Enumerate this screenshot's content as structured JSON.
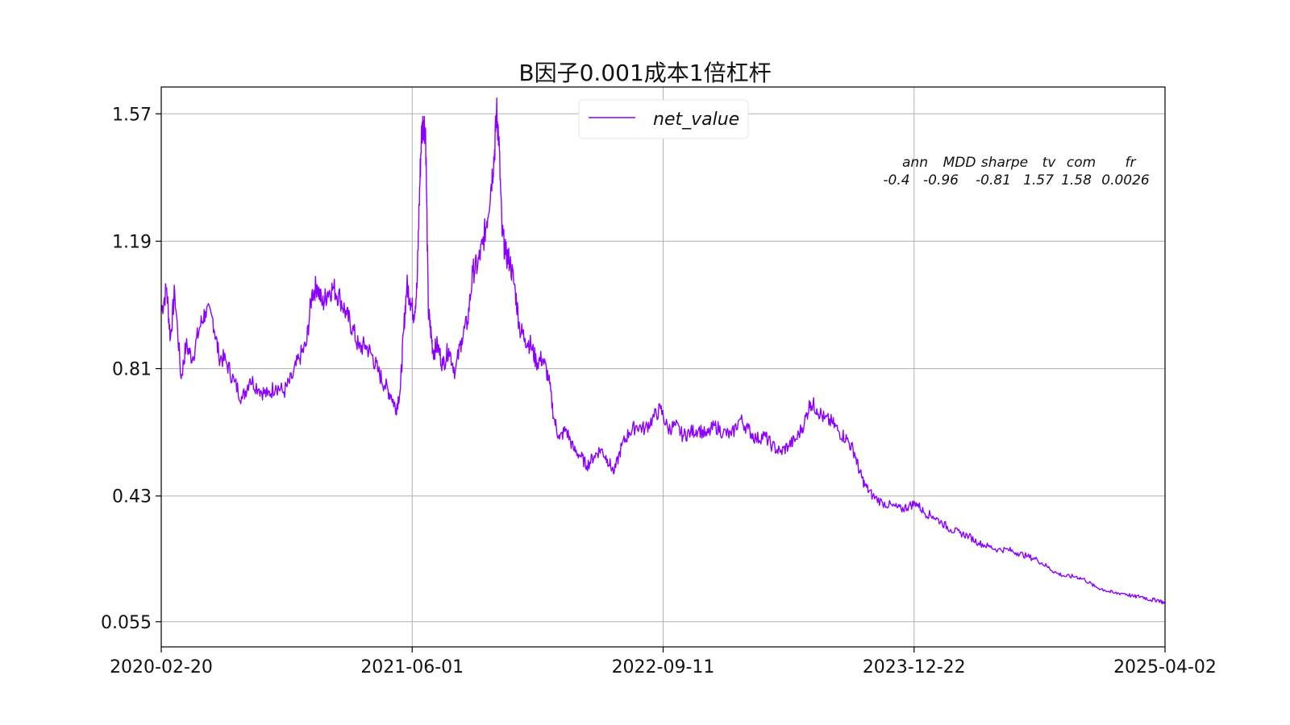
{
  "chart_data": {
    "type": "line",
    "title": "B因子0.001成本1倍杠杆",
    "xlabel": "",
    "ylabel": "",
    "x_ticks": [
      "2020-02-20",
      "2021-06-01",
      "2022-09-11",
      "2023-12-22",
      "2025-04-02"
    ],
    "x_range": [
      "2020-02-20",
      "2025-04-02"
    ],
    "y_ticks": [
      "0.055",
      "0.43",
      "0.81",
      "1.19",
      "1.57"
    ],
    "y_tick_values": [
      0.055,
      0.43,
      0.81,
      1.19,
      1.57
    ],
    "ylim": [
      -0.02,
      1.65
    ],
    "grid": true,
    "legend_position": "top-center",
    "series": [
      {
        "name": "net_value",
        "color": "#8b00ff",
        "points": [
          [
            "2020-02-20",
            0.98
          ],
          [
            "2020-03-01",
            1.05
          ],
          [
            "2020-03-08",
            0.9
          ],
          [
            "2020-03-16",
            1.04
          ],
          [
            "2020-03-28",
            0.78
          ],
          [
            "2020-04-06",
            0.88
          ],
          [
            "2020-04-18",
            0.84
          ],
          [
            "2020-05-01",
            0.93
          ],
          [
            "2020-05-12",
            0.98
          ],
          [
            "2020-05-26",
            0.96
          ],
          [
            "2020-06-06",
            0.85
          ],
          [
            "2020-06-20",
            0.83
          ],
          [
            "2020-07-05",
            0.77
          ],
          [
            "2020-07-20",
            0.72
          ],
          [
            "2020-08-03",
            0.78
          ],
          [
            "2020-08-20",
            0.75
          ],
          [
            "2020-09-05",
            0.73
          ],
          [
            "2020-09-20",
            0.76
          ],
          [
            "2020-10-05",
            0.74
          ],
          [
            "2020-10-20",
            0.78
          ],
          [
            "2020-11-02",
            0.84
          ],
          [
            "2020-11-16",
            0.88
          ],
          [
            "2020-11-26",
            1.03
          ],
          [
            "2020-12-06",
            1.06
          ],
          [
            "2020-12-16",
            1.0
          ],
          [
            "2020-12-26",
            1.04
          ],
          [
            "2021-01-06",
            1.05
          ],
          [
            "2021-01-18",
            1.02
          ],
          [
            "2021-01-30",
            0.97
          ],
          [
            "2021-02-10",
            0.93
          ],
          [
            "2021-02-22",
            0.87
          ],
          [
            "2021-03-06",
            0.88
          ],
          [
            "2021-03-18",
            0.85
          ],
          [
            "2021-03-30",
            0.8
          ],
          [
            "2021-04-11",
            0.76
          ],
          [
            "2021-04-23",
            0.73
          ],
          [
            "2021-05-02",
            0.69
          ],
          [
            "2021-05-10",
            0.75
          ],
          [
            "2021-05-16",
            0.92
          ],
          [
            "2021-05-22",
            1.06
          ],
          [
            "2021-05-28",
            1.02
          ],
          [
            "2021-06-04",
            0.97
          ],
          [
            "2021-06-10",
            1.05
          ],
          [
            "2021-06-14",
            1.3
          ],
          [
            "2021-06-18",
            1.5
          ],
          [
            "2021-06-22",
            1.55
          ],
          [
            "2021-06-26",
            1.52
          ],
          [
            "2021-07-01",
            0.98
          ],
          [
            "2021-07-05",
            0.93
          ],
          [
            "2021-07-10",
            0.86
          ],
          [
            "2021-07-18",
            0.88
          ],
          [
            "2021-07-28",
            0.82
          ],
          [
            "2021-08-08",
            0.87
          ],
          [
            "2021-08-20",
            0.8
          ],
          [
            "2021-09-01",
            0.9
          ],
          [
            "2021-09-12",
            0.95
          ],
          [
            "2021-09-22",
            1.1
          ],
          [
            "2021-10-01",
            1.12
          ],
          [
            "2021-10-10",
            1.18
          ],
          [
            "2021-10-18",
            1.25
          ],
          [
            "2021-10-26",
            1.36
          ],
          [
            "2021-11-01",
            1.45
          ],
          [
            "2021-11-05",
            1.58
          ],
          [
            "2021-11-09",
            1.5
          ],
          [
            "2021-11-15",
            1.22
          ],
          [
            "2021-11-22",
            1.15
          ],
          [
            "2021-11-30",
            1.13
          ],
          [
            "2021-12-10",
            1.04
          ],
          [
            "2021-12-18",
            0.93
          ],
          [
            "2021-12-28",
            0.9
          ],
          [
            "2022-01-08",
            0.88
          ],
          [
            "2022-01-18",
            0.83
          ],
          [
            "2022-01-30",
            0.84
          ],
          [
            "2022-02-10",
            0.78
          ],
          [
            "2022-02-20",
            0.66
          ],
          [
            "2022-03-02",
            0.6
          ],
          [
            "2022-03-14",
            0.63
          ],
          [
            "2022-03-28",
            0.57
          ],
          [
            "2022-04-10",
            0.55
          ],
          [
            "2022-04-22",
            0.52
          ],
          [
            "2022-05-06",
            0.55
          ],
          [
            "2022-05-18",
            0.57
          ],
          [
            "2022-05-30",
            0.54
          ],
          [
            "2022-06-12",
            0.5
          ],
          [
            "2022-06-26",
            0.58
          ],
          [
            "2022-07-10",
            0.62
          ],
          [
            "2022-07-24",
            0.64
          ],
          [
            "2022-08-08",
            0.63
          ],
          [
            "2022-08-22",
            0.66
          ],
          [
            "2022-09-06",
            0.69
          ],
          [
            "2022-09-20",
            0.63
          ],
          [
            "2022-10-04",
            0.64
          ],
          [
            "2022-10-18",
            0.61
          ],
          [
            "2022-11-01",
            0.62
          ],
          [
            "2022-11-16",
            0.63
          ],
          [
            "2022-12-01",
            0.61
          ],
          [
            "2022-12-16",
            0.64
          ],
          [
            "2023-01-01",
            0.62
          ],
          [
            "2023-01-16",
            0.61
          ],
          [
            "2023-02-01",
            0.66
          ],
          [
            "2023-02-16",
            0.63
          ],
          [
            "2023-03-03",
            0.6
          ],
          [
            "2023-03-18",
            0.61
          ],
          [
            "2023-04-02",
            0.58
          ],
          [
            "2023-04-17",
            0.56
          ],
          [
            "2023-05-02",
            0.58
          ],
          [
            "2023-05-17",
            0.6
          ],
          [
            "2023-06-01",
            0.65
          ],
          [
            "2023-06-12",
            0.71
          ],
          [
            "2023-06-24",
            0.69
          ],
          [
            "2023-07-08",
            0.66
          ],
          [
            "2023-07-22",
            0.65
          ],
          [
            "2023-08-05",
            0.62
          ],
          [
            "2023-08-19",
            0.6
          ],
          [
            "2023-09-02",
            0.56
          ],
          [
            "2023-09-12",
            0.5
          ],
          [
            "2023-09-22",
            0.46
          ],
          [
            "2023-10-06",
            0.43
          ],
          [
            "2023-10-24",
            0.41
          ],
          [
            "2023-11-12",
            0.4
          ],
          [
            "2023-11-28",
            0.39
          ],
          [
            "2023-12-12",
            0.4
          ],
          [
            "2023-12-26",
            0.41
          ],
          [
            "2024-01-10",
            0.38
          ],
          [
            "2024-01-26",
            0.37
          ],
          [
            "2024-02-12",
            0.35
          ],
          [
            "2024-02-28",
            0.33
          ],
          [
            "2024-03-16",
            0.32
          ],
          [
            "2024-04-02",
            0.31
          ],
          [
            "2024-04-20",
            0.29
          ],
          [
            "2024-05-08",
            0.28
          ],
          [
            "2024-05-26",
            0.27
          ],
          [
            "2024-06-14",
            0.27
          ],
          [
            "2024-07-02",
            0.26
          ],
          [
            "2024-07-20",
            0.25
          ],
          [
            "2024-08-07",
            0.24
          ],
          [
            "2024-08-25",
            0.22
          ],
          [
            "2024-09-12",
            0.2
          ],
          [
            "2024-09-30",
            0.19
          ],
          [
            "2024-10-18",
            0.19
          ],
          [
            "2024-11-04",
            0.18
          ],
          [
            "2024-11-22",
            0.16
          ],
          [
            "2024-12-10",
            0.15
          ],
          [
            "2024-12-28",
            0.14
          ],
          [
            "2025-01-15",
            0.14
          ],
          [
            "2025-02-02",
            0.13
          ],
          [
            "2025-02-18",
            0.13
          ],
          [
            "2025-03-06",
            0.12
          ],
          [
            "2025-03-20",
            0.12
          ],
          [
            "2025-04-02",
            0.11
          ]
        ]
      }
    ],
    "stats_table": {
      "headers": [
        "ann",
        "MDD",
        "sharpe",
        "tv",
        "com",
        "fr"
      ],
      "values": [
        "-0.4",
        "-0.96",
        "-0.81",
        "1.57",
        "1.58",
        "0.0026"
      ]
    }
  }
}
